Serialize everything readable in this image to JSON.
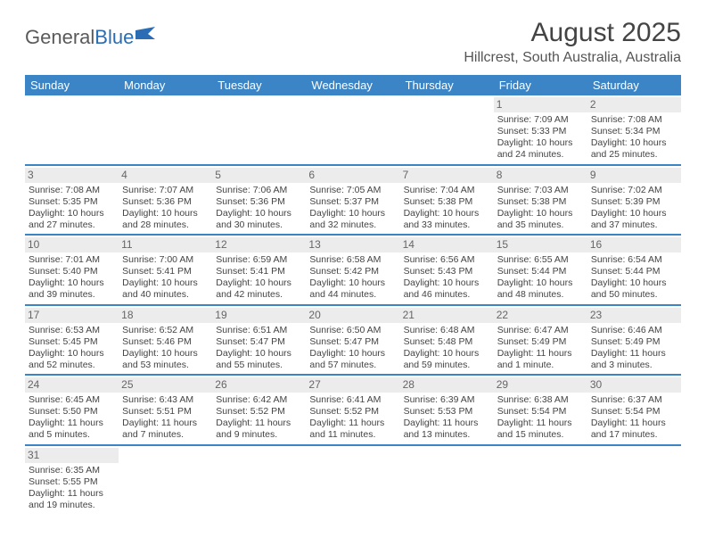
{
  "logo": {
    "text1": "General",
    "text2": "Blue"
  },
  "title": "August 2025",
  "location": "Hillcrest, South Australia, Australia",
  "colors": {
    "header_bg": "#3b85c6",
    "header_text": "#ffffff",
    "daynum_bg": "#ececec",
    "row_border": "#3b85c6",
    "text": "#444444",
    "logo_gray": "#5a5a5a",
    "logo_blue": "#2a6db5"
  },
  "dayNames": [
    "Sunday",
    "Monday",
    "Tuesday",
    "Wednesday",
    "Thursday",
    "Friday",
    "Saturday"
  ],
  "weeks": [
    [
      null,
      null,
      null,
      null,
      null,
      {
        "n": "1",
        "sr": "Sunrise: 7:09 AM",
        "ss": "Sunset: 5:33 PM",
        "dl1": "Daylight: 10 hours",
        "dl2": "and 24 minutes."
      },
      {
        "n": "2",
        "sr": "Sunrise: 7:08 AM",
        "ss": "Sunset: 5:34 PM",
        "dl1": "Daylight: 10 hours",
        "dl2": "and 25 minutes."
      }
    ],
    [
      {
        "n": "3",
        "sr": "Sunrise: 7:08 AM",
        "ss": "Sunset: 5:35 PM",
        "dl1": "Daylight: 10 hours",
        "dl2": "and 27 minutes."
      },
      {
        "n": "4",
        "sr": "Sunrise: 7:07 AM",
        "ss": "Sunset: 5:36 PM",
        "dl1": "Daylight: 10 hours",
        "dl2": "and 28 minutes."
      },
      {
        "n": "5",
        "sr": "Sunrise: 7:06 AM",
        "ss": "Sunset: 5:36 PM",
        "dl1": "Daylight: 10 hours",
        "dl2": "and 30 minutes."
      },
      {
        "n": "6",
        "sr": "Sunrise: 7:05 AM",
        "ss": "Sunset: 5:37 PM",
        "dl1": "Daylight: 10 hours",
        "dl2": "and 32 minutes."
      },
      {
        "n": "7",
        "sr": "Sunrise: 7:04 AM",
        "ss": "Sunset: 5:38 PM",
        "dl1": "Daylight: 10 hours",
        "dl2": "and 33 minutes."
      },
      {
        "n": "8",
        "sr": "Sunrise: 7:03 AM",
        "ss": "Sunset: 5:38 PM",
        "dl1": "Daylight: 10 hours",
        "dl2": "and 35 minutes."
      },
      {
        "n": "9",
        "sr": "Sunrise: 7:02 AM",
        "ss": "Sunset: 5:39 PM",
        "dl1": "Daylight: 10 hours",
        "dl2": "and 37 minutes."
      }
    ],
    [
      {
        "n": "10",
        "sr": "Sunrise: 7:01 AM",
        "ss": "Sunset: 5:40 PM",
        "dl1": "Daylight: 10 hours",
        "dl2": "and 39 minutes."
      },
      {
        "n": "11",
        "sr": "Sunrise: 7:00 AM",
        "ss": "Sunset: 5:41 PM",
        "dl1": "Daylight: 10 hours",
        "dl2": "and 40 minutes."
      },
      {
        "n": "12",
        "sr": "Sunrise: 6:59 AM",
        "ss": "Sunset: 5:41 PM",
        "dl1": "Daylight: 10 hours",
        "dl2": "and 42 minutes."
      },
      {
        "n": "13",
        "sr": "Sunrise: 6:58 AM",
        "ss": "Sunset: 5:42 PM",
        "dl1": "Daylight: 10 hours",
        "dl2": "and 44 minutes."
      },
      {
        "n": "14",
        "sr": "Sunrise: 6:56 AM",
        "ss": "Sunset: 5:43 PM",
        "dl1": "Daylight: 10 hours",
        "dl2": "and 46 minutes."
      },
      {
        "n": "15",
        "sr": "Sunrise: 6:55 AM",
        "ss": "Sunset: 5:44 PM",
        "dl1": "Daylight: 10 hours",
        "dl2": "and 48 minutes."
      },
      {
        "n": "16",
        "sr": "Sunrise: 6:54 AM",
        "ss": "Sunset: 5:44 PM",
        "dl1": "Daylight: 10 hours",
        "dl2": "and 50 minutes."
      }
    ],
    [
      {
        "n": "17",
        "sr": "Sunrise: 6:53 AM",
        "ss": "Sunset: 5:45 PM",
        "dl1": "Daylight: 10 hours",
        "dl2": "and 52 minutes."
      },
      {
        "n": "18",
        "sr": "Sunrise: 6:52 AM",
        "ss": "Sunset: 5:46 PM",
        "dl1": "Daylight: 10 hours",
        "dl2": "and 53 minutes."
      },
      {
        "n": "19",
        "sr": "Sunrise: 6:51 AM",
        "ss": "Sunset: 5:47 PM",
        "dl1": "Daylight: 10 hours",
        "dl2": "and 55 minutes."
      },
      {
        "n": "20",
        "sr": "Sunrise: 6:50 AM",
        "ss": "Sunset: 5:47 PM",
        "dl1": "Daylight: 10 hours",
        "dl2": "and 57 minutes."
      },
      {
        "n": "21",
        "sr": "Sunrise: 6:48 AM",
        "ss": "Sunset: 5:48 PM",
        "dl1": "Daylight: 10 hours",
        "dl2": "and 59 minutes."
      },
      {
        "n": "22",
        "sr": "Sunrise: 6:47 AM",
        "ss": "Sunset: 5:49 PM",
        "dl1": "Daylight: 11 hours",
        "dl2": "and 1 minute."
      },
      {
        "n": "23",
        "sr": "Sunrise: 6:46 AM",
        "ss": "Sunset: 5:49 PM",
        "dl1": "Daylight: 11 hours",
        "dl2": "and 3 minutes."
      }
    ],
    [
      {
        "n": "24",
        "sr": "Sunrise: 6:45 AM",
        "ss": "Sunset: 5:50 PM",
        "dl1": "Daylight: 11 hours",
        "dl2": "and 5 minutes."
      },
      {
        "n": "25",
        "sr": "Sunrise: 6:43 AM",
        "ss": "Sunset: 5:51 PM",
        "dl1": "Daylight: 11 hours",
        "dl2": "and 7 minutes."
      },
      {
        "n": "26",
        "sr": "Sunrise: 6:42 AM",
        "ss": "Sunset: 5:52 PM",
        "dl1": "Daylight: 11 hours",
        "dl2": "and 9 minutes."
      },
      {
        "n": "27",
        "sr": "Sunrise: 6:41 AM",
        "ss": "Sunset: 5:52 PM",
        "dl1": "Daylight: 11 hours",
        "dl2": "and 11 minutes."
      },
      {
        "n": "28",
        "sr": "Sunrise: 6:39 AM",
        "ss": "Sunset: 5:53 PM",
        "dl1": "Daylight: 11 hours",
        "dl2": "and 13 minutes."
      },
      {
        "n": "29",
        "sr": "Sunrise: 6:38 AM",
        "ss": "Sunset: 5:54 PM",
        "dl1": "Daylight: 11 hours",
        "dl2": "and 15 minutes."
      },
      {
        "n": "30",
        "sr": "Sunrise: 6:37 AM",
        "ss": "Sunset: 5:54 PM",
        "dl1": "Daylight: 11 hours",
        "dl2": "and 17 minutes."
      }
    ],
    [
      {
        "n": "31",
        "sr": "Sunrise: 6:35 AM",
        "ss": "Sunset: 5:55 PM",
        "dl1": "Daylight: 11 hours",
        "dl2": "and 19 minutes."
      },
      null,
      null,
      null,
      null,
      null,
      null
    ]
  ]
}
